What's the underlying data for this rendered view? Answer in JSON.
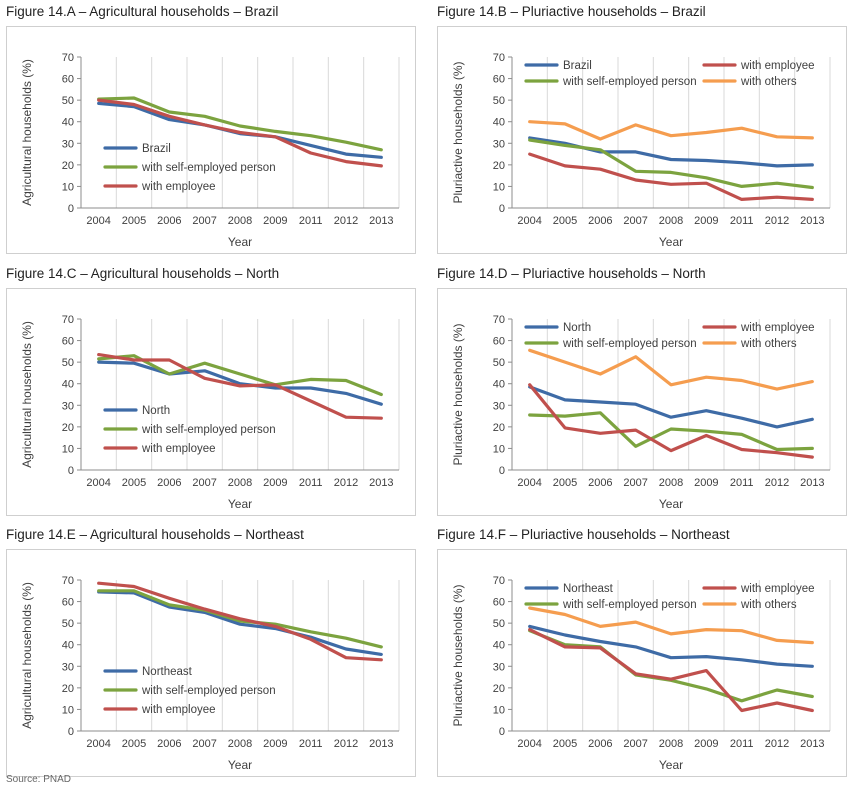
{
  "footer": {
    "source_label": "Source: PNAD"
  },
  "colors": {
    "blue": "#3e6ba6",
    "green": "#7ca33f",
    "red": "#c0504d",
    "orange": "#f59d4f"
  },
  "chart_data": [
    {
      "type": "line",
      "title": "Figure 14.A – Agricultural households – Brazil",
      "xlabel": "Year",
      "ylabel": "Agricultural households (%)",
      "categories": [
        "2004",
        "2005",
        "2006",
        "2007",
        "2008",
        "2009",
        "2011",
        "2012",
        "2013"
      ],
      "ylim": [
        0,
        70
      ],
      "yticks": [
        0,
        10,
        20,
        30,
        40,
        50,
        60,
        70
      ],
      "grid": "vertical",
      "legend": "bottom-left",
      "series": [
        {
          "name": "Brazil",
          "color": "#3e6ba6",
          "values": [
            48.5,
            47,
            41,
            38.5,
            34.5,
            33,
            29,
            25,
            23.5
          ]
        },
        {
          "name": "with self-employed person",
          "color": "#7ca33f",
          "values": [
            50.5,
            51,
            44.5,
            42.5,
            38,
            35.5,
            33.5,
            30.5,
            27
          ]
        },
        {
          "name": "with employee",
          "color": "#c0504d",
          "values": [
            50,
            48,
            42.5,
            38.5,
            35,
            33,
            25.5,
            21.5,
            19.5
          ]
        }
      ]
    },
    {
      "type": "line",
      "title": "Figure 14.B – Pluriactive households – Brazil",
      "xlabel": "Year",
      "ylabel": "Pluriactive households (%)",
      "categories": [
        "2004",
        "2005",
        "2006",
        "2007",
        "2008",
        "2009",
        "2011",
        "2012",
        "2013"
      ],
      "ylim": [
        0,
        70
      ],
      "yticks": [
        0,
        10,
        20,
        30,
        40,
        50,
        60,
        70
      ],
      "grid": "vertical",
      "legend": "top",
      "series": [
        {
          "name": "Brazil",
          "color": "#3e6ba6",
          "values": [
            32.5,
            30,
            26,
            26,
            22.5,
            22,
            21,
            19.5,
            20
          ]
        },
        {
          "name": "with self-employed person",
          "color": "#7ca33f",
          "values": [
            31.5,
            29,
            27,
            17,
            16.5,
            14,
            10,
            11.5,
            9.5
          ]
        },
        {
          "name": "with employee",
          "color": "#c0504d",
          "values": [
            25,
            19.5,
            18,
            13,
            11,
            11.5,
            4,
            5,
            4
          ]
        },
        {
          "name": "with others",
          "color": "#f59d4f",
          "values": [
            40,
            39,
            32,
            38.5,
            33.5,
            35,
            37,
            33,
            32.5
          ]
        }
      ]
    },
    {
      "type": "line",
      "title": "Figure 14.C – Agricultural households – North",
      "xlabel": "Year",
      "ylabel": "Agricultural households (%)",
      "categories": [
        "2004",
        "2005",
        "2006",
        "2007",
        "2008",
        "2009",
        "2011",
        "2012",
        "2013"
      ],
      "ylim": [
        0,
        70
      ],
      "yticks": [
        0,
        10,
        20,
        30,
        40,
        50,
        60,
        70
      ],
      "grid": "vertical",
      "legend": "bottom-left",
      "series": [
        {
          "name": "North",
          "color": "#3e6ba6",
          "values": [
            50,
            49.5,
            44.5,
            46,
            40,
            38,
            38,
            35.5,
            30.5
          ]
        },
        {
          "name": "with self-employed person",
          "color": "#7ca33f",
          "values": [
            51.5,
            53,
            44.5,
            49.5,
            44.5,
            39.5,
            42,
            41.5,
            35
          ]
        },
        {
          "name": "with employee",
          "color": "#c0504d",
          "values": [
            53.5,
            51,
            51,
            42.5,
            39,
            39.5,
            32,
            24.5,
            24
          ]
        }
      ]
    },
    {
      "type": "line",
      "title": "Figure 14.D – Pluriactive households – North",
      "xlabel": "Year",
      "ylabel": "Pluriactive households (%)",
      "categories": [
        "2004",
        "2005",
        "2006",
        "2007",
        "2008",
        "2009",
        "2011",
        "2012",
        "2013"
      ],
      "ylim": [
        0,
        70
      ],
      "yticks": [
        0,
        10,
        20,
        30,
        40,
        50,
        60,
        70
      ],
      "grid": "vertical",
      "legend": "top",
      "series": [
        {
          "name": "North",
          "color": "#3e6ba6",
          "values": [
            38.5,
            32.5,
            31.5,
            30.5,
            24.5,
            27.5,
            24,
            20,
            23.5
          ]
        },
        {
          "name": "with self-employed person",
          "color": "#7ca33f",
          "values": [
            25.5,
            25,
            26.5,
            11,
            19,
            18,
            16.5,
            9.5,
            10
          ]
        },
        {
          "name": "with employee",
          "color": "#c0504d",
          "values": [
            39.5,
            19.5,
            17,
            18.5,
            9,
            16,
            9.5,
            8,
            6
          ]
        },
        {
          "name": "with others",
          "color": "#f59d4f",
          "values": [
            55.5,
            50,
            44.5,
            52.5,
            39.5,
            43,
            41.5,
            37.5,
            41
          ]
        }
      ]
    },
    {
      "type": "line",
      "title": "Figure 14.E – Agricultural households – Northeast",
      "xlabel": "Year",
      "ylabel": "Agricultural households (%)",
      "categories": [
        "2004",
        "2005",
        "2006",
        "2007",
        "2008",
        "2009",
        "2011",
        "2012",
        "2013"
      ],
      "ylim": [
        0,
        70
      ],
      "yticks": [
        0,
        10,
        20,
        30,
        40,
        50,
        60,
        70
      ],
      "grid": "vertical",
      "legend": "bottom-left",
      "series": [
        {
          "name": "Northeast",
          "color": "#3e6ba6",
          "values": [
            64.5,
            64,
            57.5,
            55,
            49.5,
            47.5,
            43.5,
            38,
            35.5
          ]
        },
        {
          "name": "with self-employed person",
          "color": "#7ca33f",
          "values": [
            65,
            65,
            58.5,
            56,
            51,
            49.5,
            46,
            43,
            39
          ]
        },
        {
          "name": "with employee",
          "color": "#c0504d",
          "values": [
            68.5,
            67,
            61.5,
            56.5,
            52,
            48.5,
            42.5,
            34,
            33
          ]
        }
      ]
    },
    {
      "type": "line",
      "title": "Figure 14.F – Pluriactive households – Northeast",
      "xlabel": "Year",
      "ylabel": "Pluriactive households (%)",
      "categories": [
        "2004",
        "2005",
        "2006",
        "2007",
        "2008",
        "2009",
        "2011",
        "2012",
        "2013"
      ],
      "ylim": [
        0,
        70
      ],
      "yticks": [
        0,
        10,
        20,
        30,
        40,
        50,
        60,
        70
      ],
      "grid": "vertical",
      "legend": "top",
      "series": [
        {
          "name": "Northeast",
          "color": "#3e6ba6",
          "values": [
            48.5,
            44.5,
            41.5,
            39,
            34,
            34.5,
            33,
            31,
            30
          ]
        },
        {
          "name": "with self-employed person",
          "color": "#7ca33f",
          "values": [
            46.5,
            40,
            39,
            26,
            23.5,
            19.5,
            14,
            19,
            16
          ]
        },
        {
          "name": "with employee",
          "color": "#c0504d",
          "values": [
            47,
            39,
            38.5,
            26.5,
            24,
            28,
            9.5,
            13,
            9.5
          ]
        },
        {
          "name": "with others",
          "color": "#f59d4f",
          "values": [
            57,
            54,
            48.5,
            50.5,
            45,
            47,
            46.5,
            42,
            41
          ]
        }
      ]
    }
  ]
}
